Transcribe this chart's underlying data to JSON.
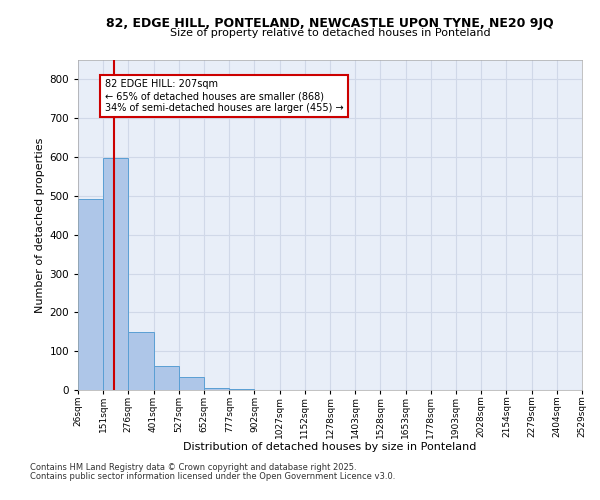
{
  "title1": "82, EDGE HILL, PONTELAND, NEWCASTLE UPON TYNE, NE20 9JQ",
  "title2": "Size of property relative to detached houses in Ponteland",
  "xlabel": "Distribution of detached houses by size in Ponteland",
  "ylabel": "Number of detached properties",
  "bin_edges": [
    26,
    151,
    276,
    401,
    527,
    652,
    777,
    902,
    1027,
    1152,
    1278,
    1403,
    1528,
    1653,
    1778,
    1903,
    2028,
    2154,
    2279,
    2404,
    2529
  ],
  "bar_heights": [
    491,
    597,
    150,
    62,
    33,
    5,
    2,
    0,
    0,
    0,
    0,
    0,
    0,
    0,
    0,
    0,
    0,
    0,
    0,
    0
  ],
  "bar_color": "#aec6e8",
  "bar_edgecolor": "#5a9fd4",
  "vline_x": 207,
  "vline_color": "#cc0000",
  "ylim": [
    0,
    850
  ],
  "yticks": [
    0,
    100,
    200,
    300,
    400,
    500,
    600,
    700,
    800
  ],
  "annotation_line1": "82 EDGE HILL: 207sqm",
  "annotation_line2": "← 65% of detached houses are smaller (868)",
  "annotation_line3": "34% of semi-detached houses are larger (455) →",
  "annotation_box_color": "#ffffff",
  "annotation_box_edgecolor": "#cc0000",
  "footnote1": "Contains HM Land Registry data © Crown copyright and database right 2025.",
  "footnote2": "Contains public sector information licensed under the Open Government Licence v3.0.",
  "grid_color": "#d0d8e8",
  "background_color": "#e8eef8"
}
